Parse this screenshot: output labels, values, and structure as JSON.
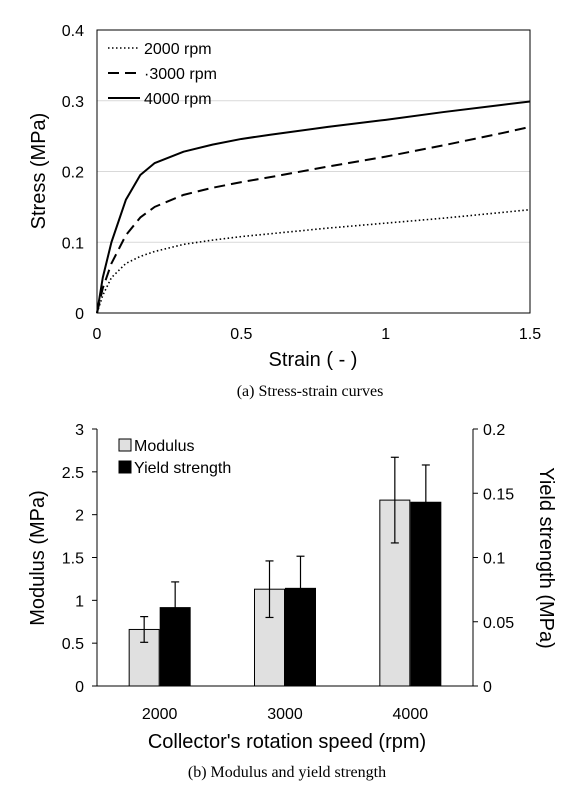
{
  "chart_data": [
    {
      "type": "line",
      "caption": "(a)  Stress-strain curves",
      "xlabel": "Strain ( - )",
      "ylabel": "Stress (MPa)",
      "xlim": [
        0,
        1.5
      ],
      "ylim": [
        0,
        0.4
      ],
      "xticks": [
        "0",
        "0.5",
        "1",
        "1.5"
      ],
      "yticks": [
        "0",
        "0.1",
        "0.2",
        "0.3",
        "0.4"
      ],
      "grid": "horizontal",
      "legend_position": "top-left",
      "series": [
        {
          "name": "2000 rpm",
          "style": "dotted",
          "x": [
            0,
            0.02,
            0.05,
            0.1,
            0.15,
            0.2,
            0.3,
            0.4,
            0.5,
            0.6,
            0.8,
            1.0,
            1.2,
            1.4,
            1.5
          ],
          "y": [
            0,
            0.025,
            0.05,
            0.07,
            0.08,
            0.087,
            0.097,
            0.103,
            0.108,
            0.112,
            0.12,
            0.127,
            0.134,
            0.142,
            0.146
          ]
        },
        {
          "name": "·3000 rpm",
          "style": "dashed",
          "x": [
            0,
            0.02,
            0.05,
            0.1,
            0.15,
            0.2,
            0.3,
            0.4,
            0.5,
            0.6,
            0.8,
            1.0,
            1.2,
            1.4,
            1.5
          ],
          "y": [
            0,
            0.035,
            0.07,
            0.11,
            0.135,
            0.15,
            0.167,
            0.177,
            0.185,
            0.192,
            0.207,
            0.221,
            0.237,
            0.254,
            0.263
          ]
        },
        {
          "name": "4000 rpm",
          "style": "solid",
          "x": [
            0,
            0.02,
            0.05,
            0.1,
            0.15,
            0.2,
            0.3,
            0.4,
            0.5,
            0.6,
            0.8,
            1.0,
            1.2,
            1.4,
            1.5
          ],
          "y": [
            0,
            0.05,
            0.1,
            0.16,
            0.195,
            0.212,
            0.228,
            0.238,
            0.246,
            0.252,
            0.263,
            0.273,
            0.284,
            0.294,
            0.299
          ]
        }
      ]
    },
    {
      "type": "bar",
      "caption": "(b) Modulus and yield strength",
      "xlabel": "Collector's rotation speed (rpm)",
      "ylabel": "Modulus (MPa)",
      "ylabel_right": "Yield strength (MPa)",
      "categories": [
        "2000",
        "3000",
        "4000"
      ],
      "ylim": [
        0,
        3
      ],
      "ylim_right": [
        0,
        0.2
      ],
      "yticks": [
        "0",
        "0.5",
        "1",
        "1.5",
        "2",
        "2.5",
        "3"
      ],
      "yticks_right": [
        "0",
        "0.05",
        "0.1",
        "0.15",
        "0.2"
      ],
      "legend_position": "top-left",
      "colors": {
        "modulus": "#e0e0e0",
        "yield": "#000000"
      },
      "series": [
        {
          "name": "Modulus",
          "axis": "left",
          "values": [
            0.66,
            1.13,
            2.17
          ],
          "errors": [
            0.15,
            0.33,
            0.5
          ]
        },
        {
          "name": "Yield strength",
          "axis": "right",
          "values": [
            0.061,
            0.076,
            0.143
          ],
          "errors": [
            0.02,
            0.025,
            0.029
          ]
        }
      ]
    }
  ]
}
